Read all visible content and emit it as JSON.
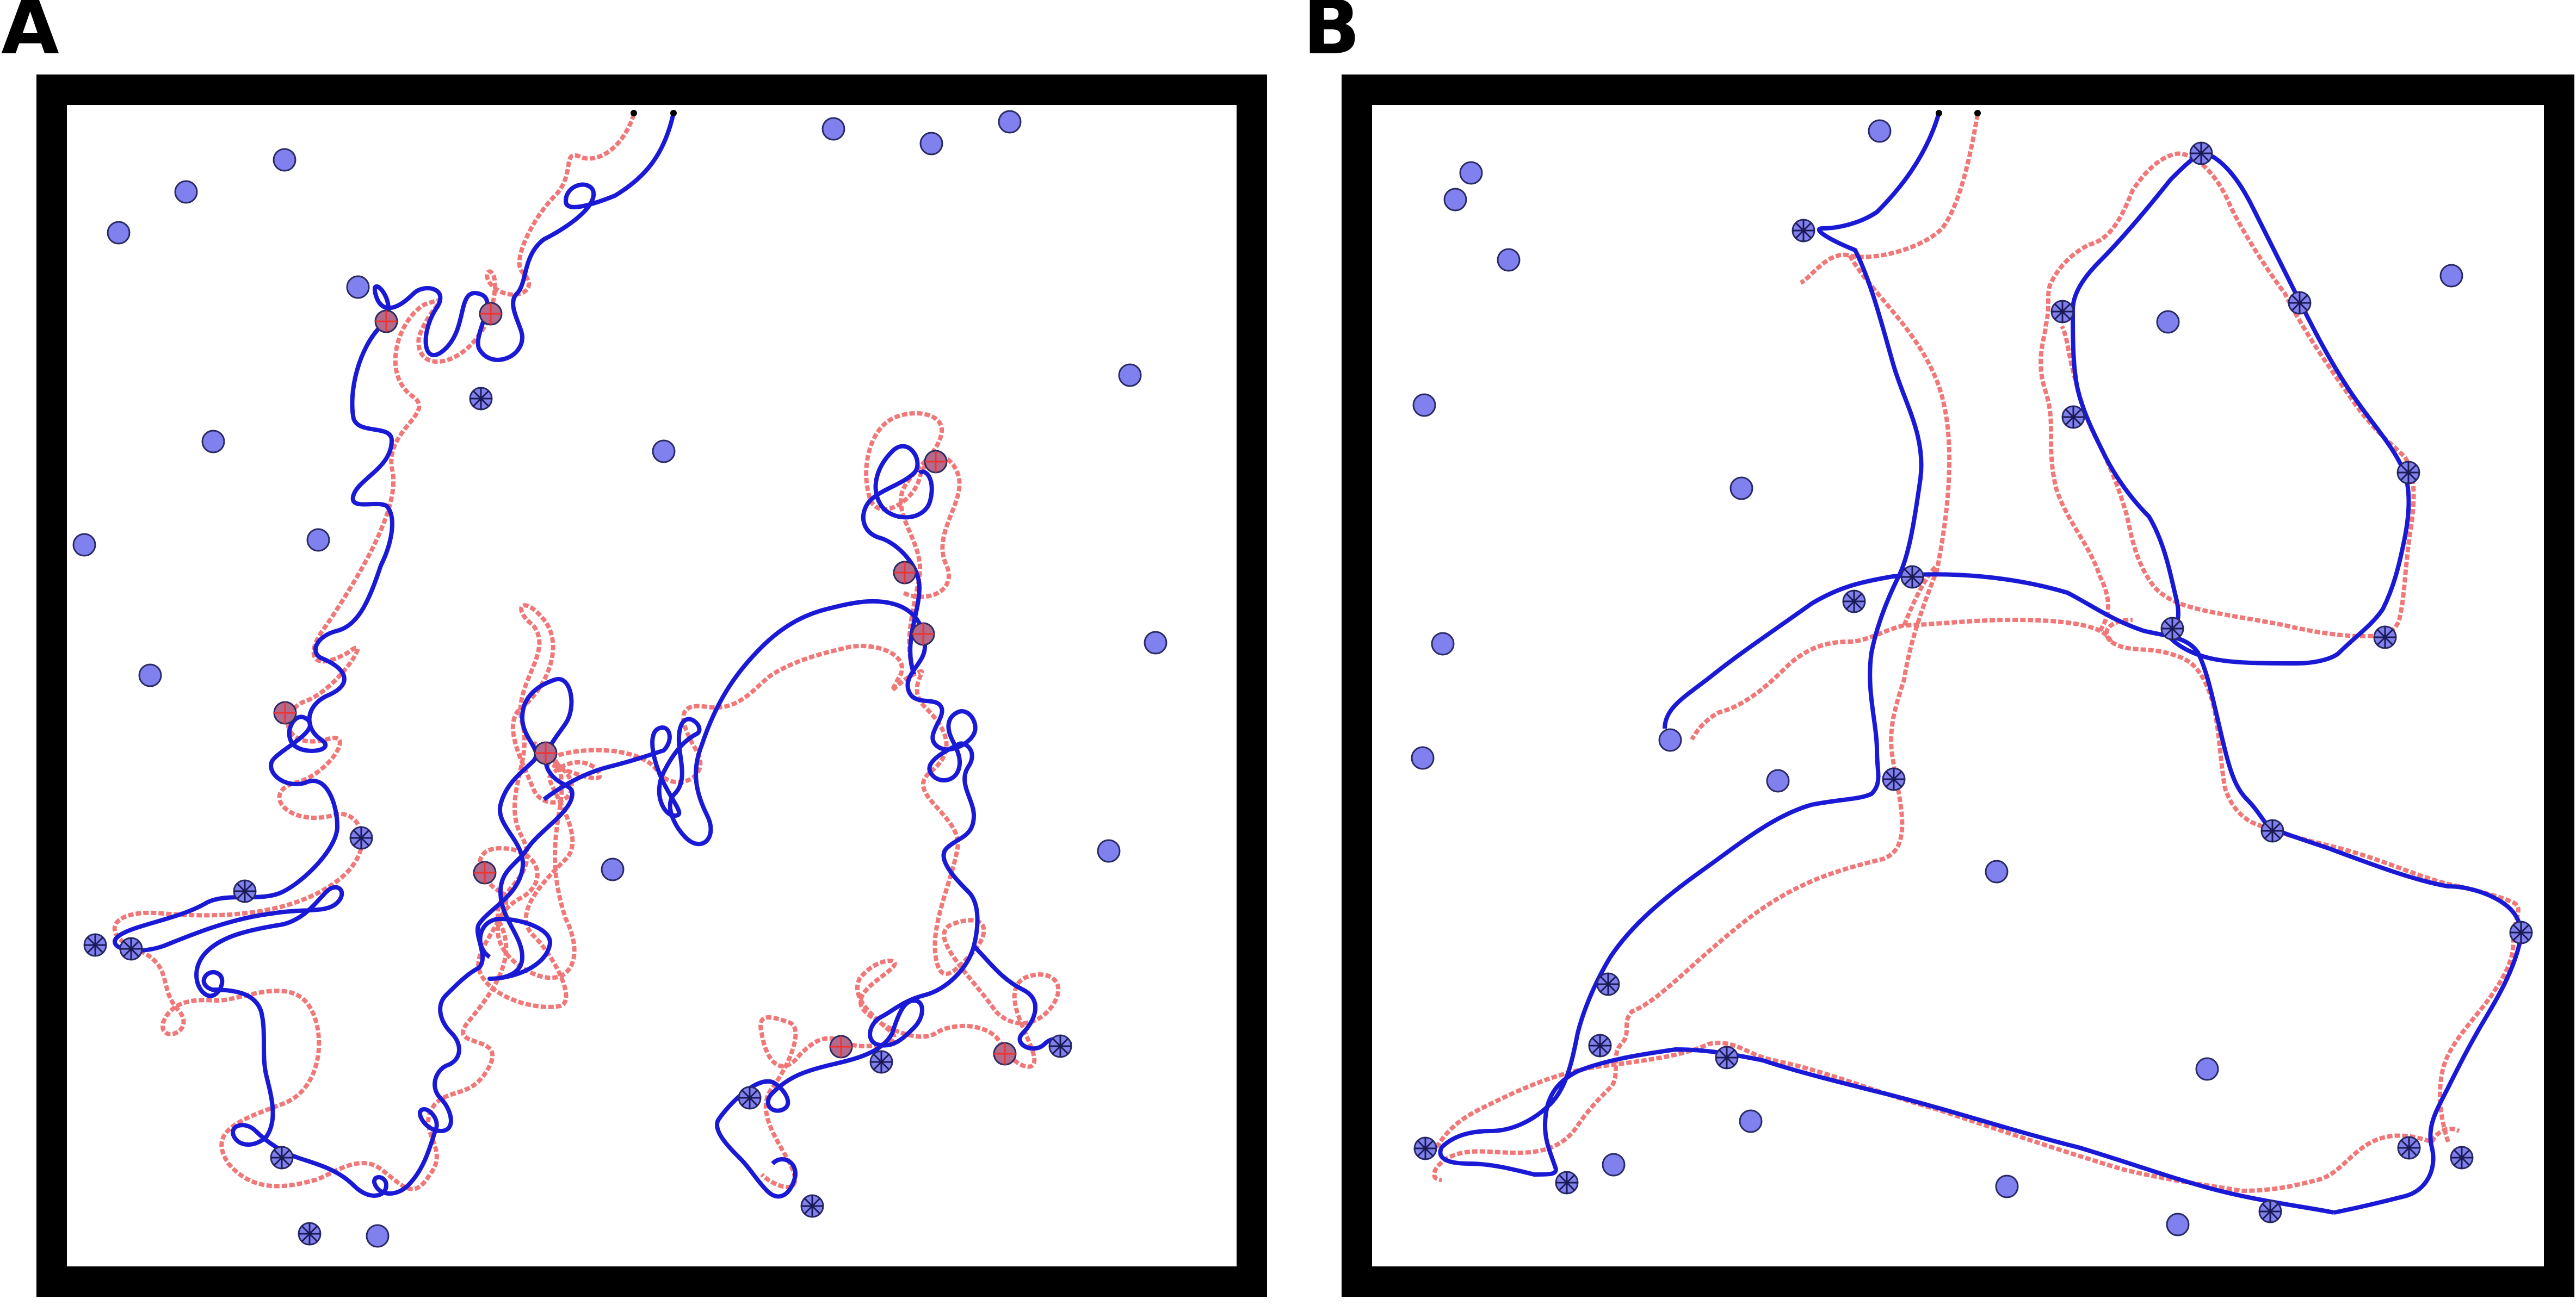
{
  "panels": [
    {
      "label": "A"
    },
    {
      "label": "B"
    }
  ],
  "colors": {
    "frame": "#000000",
    "target": "#8080ee",
    "target_stroke": "#2a2a66",
    "visited_cross": "#1a1a55",
    "visited_red_cross": "#ee3333",
    "path_blue": "#1a1ad6",
    "path_red": "#f07878",
    "start_dot": "#000000"
  },
  "icons": {
    "target": "filled-circle",
    "visited_target": "circle-with-cross",
    "start": "small-black-dot"
  }
}
